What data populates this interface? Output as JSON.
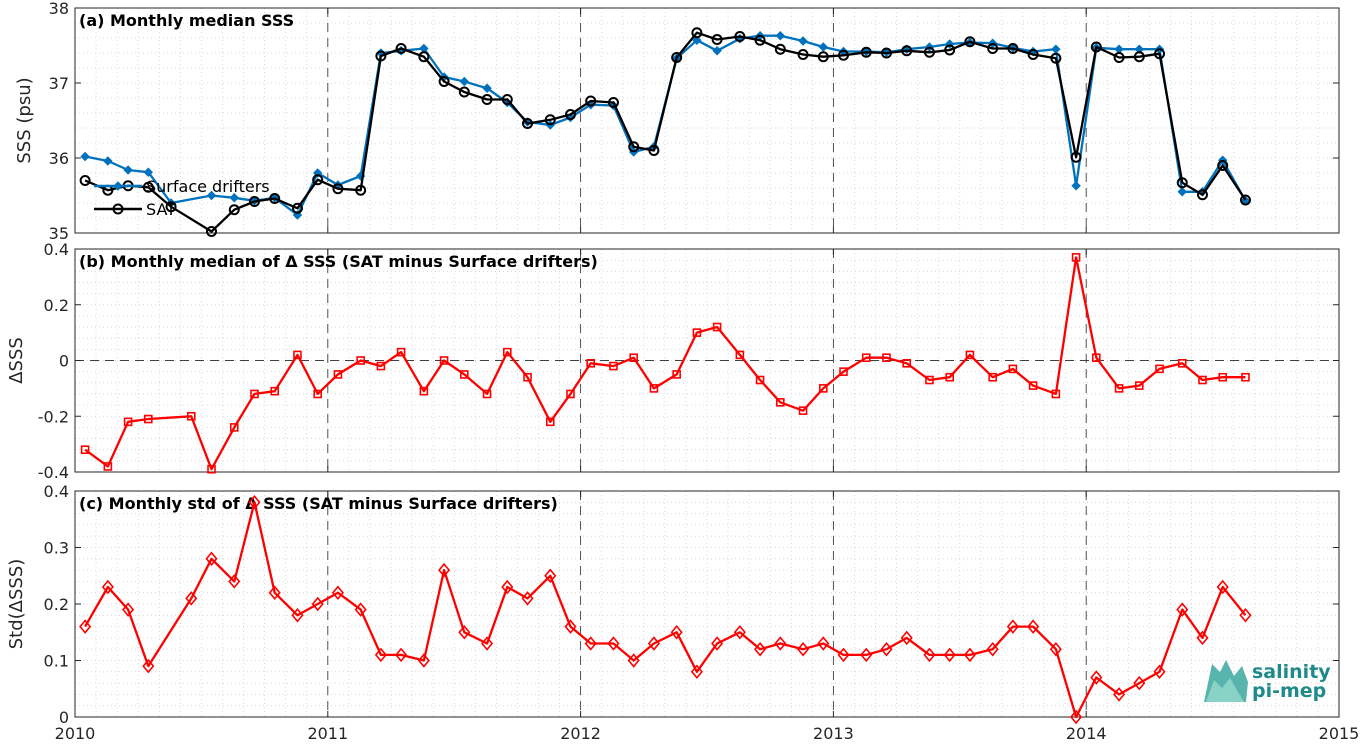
{
  "chart_data": [
    {
      "panel": "a",
      "type": "line",
      "title": "(a) Monthly median SSS",
      "ylabel": "SSS (psu)",
      "xlim": [
        2010,
        2015
      ],
      "ylim": [
        35,
        38
      ],
      "yticks": [
        35,
        36,
        37,
        38
      ],
      "xticks": [
        2010,
        2011,
        2012,
        2013,
        2014,
        2015
      ],
      "grid": true,
      "legend_position": "middle-left",
      "series": [
        {
          "name": "Surface drifters",
          "color": "#0072BD",
          "marker": "diamond",
          "x": [
            2010.04,
            2010.13,
            2010.21,
            2010.29,
            2010.38,
            2010.54,
            2010.63,
            2010.71,
            2010.79,
            2010.88,
            2010.96,
            2011.04,
            2011.13,
            2011.21,
            2011.29,
            2011.38,
            2011.46,
            2011.54,
            2011.63,
            2011.71,
            2011.79,
            2011.88,
            2011.96,
            2012.04,
            2012.13,
            2012.21,
            2012.29,
            2012.38,
            2012.46,
            2012.54,
            2012.63,
            2012.71,
            2012.79,
            2012.88,
            2012.96,
            2013.04,
            2013.13,
            2013.21,
            2013.29,
            2013.38,
            2013.46,
            2013.54,
            2013.63,
            2013.71,
            2013.79,
            2013.88,
            2013.96,
            2014.04,
            2014.13,
            2014.21,
            2014.29,
            2014.38,
            2014.46,
            2014.54,
            2014.63
          ],
          "values": [
            36.02,
            35.96,
            35.84,
            35.81,
            35.4,
            35.5,
            35.47,
            35.43,
            35.47,
            35.24,
            35.8,
            35.64,
            35.76,
            37.4,
            37.43,
            37.46,
            37.08,
            37.02,
            36.93,
            36.74,
            36.48,
            36.44,
            36.54,
            36.71,
            36.7,
            36.08,
            36.15,
            37.33,
            37.57,
            37.43,
            37.59,
            37.63,
            37.63,
            37.56,
            37.48,
            37.42,
            37.42,
            37.41,
            37.45,
            37.48,
            37.52,
            37.54,
            37.53,
            37.47,
            37.42,
            37.45,
            35.63,
            37.47,
            37.45,
            37.45,
            37.45,
            35.55,
            35.55,
            35.97,
            35.43
          ]
        },
        {
          "name": "SAT",
          "color": "#000000",
          "marker": "circle",
          "x": [
            2010.04,
            2010.13,
            2010.21,
            2010.29,
            2010.38,
            2010.54,
            2010.63,
            2010.71,
            2010.79,
            2010.88,
            2010.96,
            2011.04,
            2011.13,
            2011.21,
            2011.29,
            2011.38,
            2011.46,
            2011.54,
            2011.63,
            2011.71,
            2011.79,
            2011.88,
            2011.96,
            2012.04,
            2012.13,
            2012.21,
            2012.29,
            2012.38,
            2012.46,
            2012.54,
            2012.63,
            2012.71,
            2012.79,
            2012.88,
            2012.96,
            2013.04,
            2013.13,
            2013.21,
            2013.29,
            2013.38,
            2013.46,
            2013.54,
            2013.63,
            2013.71,
            2013.79,
            2013.88,
            2013.96,
            2014.04,
            2014.13,
            2014.21,
            2014.29,
            2014.38,
            2014.46,
            2014.54,
            2014.63
          ],
          "values": [
            35.7,
            35.57,
            35.63,
            35.61,
            35.35,
            35.02,
            35.31,
            35.42,
            35.46,
            35.33,
            35.71,
            35.59,
            35.57,
            37.36,
            37.46,
            37.35,
            37.02,
            36.88,
            36.78,
            36.78,
            36.46,
            36.51,
            36.58,
            36.76,
            36.74,
            36.15,
            36.1,
            37.34,
            37.67,
            37.58,
            37.62,
            37.57,
            37.45,
            37.38,
            37.35,
            37.37,
            37.41,
            37.4,
            37.43,
            37.41,
            37.44,
            37.55,
            37.46,
            37.46,
            37.38,
            37.33,
            36.01,
            37.48,
            37.34,
            37.35,
            37.39,
            35.67,
            35.51,
            35.9,
            35.44
          ]
        }
      ]
    },
    {
      "panel": "b",
      "type": "line",
      "title": "(b) Monthly median of Δ SSS (SAT minus Surface drifters)",
      "ylabel": "ΔSSS",
      "xlim": [
        2010,
        2015
      ],
      "ylim": [
        -0.4,
        0.4
      ],
      "yticks": [
        -0.4,
        -0.2,
        0,
        0.2,
        0.4
      ],
      "ytick_labels": [
        "-0.4",
        "-0.2",
        "0",
        "0.2",
        "0.4"
      ],
      "grid": true,
      "series": [
        {
          "color": "#FF0000",
          "marker": "square",
          "x": [
            2010.04,
            2010.13,
            2010.21,
            2010.29,
            2010.46,
            2010.54,
            2010.63,
            2010.71,
            2010.79,
            2010.88,
            2010.96,
            2011.04,
            2011.13,
            2011.21,
            2011.29,
            2011.38,
            2011.46,
            2011.54,
            2011.63,
            2011.71,
            2011.79,
            2011.88,
            2011.96,
            2012.04,
            2012.13,
            2012.21,
            2012.29,
            2012.38,
            2012.46,
            2012.54,
            2012.63,
            2012.71,
            2012.79,
            2012.88,
            2012.96,
            2013.04,
            2013.13,
            2013.21,
            2013.29,
            2013.38,
            2013.46,
            2013.54,
            2013.63,
            2013.71,
            2013.79,
            2013.88,
            2013.96,
            2014.04,
            2014.13,
            2014.21,
            2014.29,
            2014.38,
            2014.46,
            2014.54,
            2014.63
          ],
          "values": [
            -0.32,
            -0.38,
            -0.22,
            -0.21,
            -0.2,
            -0.39,
            -0.24,
            -0.12,
            -0.11,
            0.02,
            -0.12,
            -0.05,
            0.0,
            -0.02,
            0.03,
            -0.11,
            0.0,
            -0.05,
            -0.12,
            0.03,
            -0.06,
            -0.22,
            -0.12,
            -0.01,
            -0.02,
            0.01,
            -0.1,
            -0.05,
            0.1,
            0.12,
            0.02,
            -0.07,
            -0.15,
            -0.18,
            -0.1,
            -0.04,
            0.01,
            0.01,
            -0.01,
            -0.07,
            -0.06,
            0.02,
            -0.06,
            -0.03,
            -0.09,
            -0.12,
            0.37,
            0.01,
            -0.1,
            -0.09,
            -0.03,
            -0.01,
            -0.07,
            -0.06,
            -0.06
          ]
        }
      ]
    },
    {
      "panel": "c",
      "type": "line",
      "title": "(c) Monthly std of Δ SSS (SAT minus Surface drifters)",
      "ylabel": "Std(ΔSSS)",
      "xlim": [
        2010,
        2015
      ],
      "ylim": [
        0,
        0.4
      ],
      "yticks": [
        0,
        0.1,
        0.2,
        0.3,
        0.4
      ],
      "ytick_labels": [
        "0",
        "0.1",
        "0.2",
        "0.3",
        "0.4"
      ],
      "xtick_labels": [
        "2010",
        "2011",
        "2012",
        "2013",
        "2014",
        "2015"
      ],
      "grid": true,
      "series": [
        {
          "color": "#FF0000",
          "marker": "diamond",
          "x": [
            2010.04,
            2010.13,
            2010.21,
            2010.29,
            2010.46,
            2010.54,
            2010.63,
            2010.71,
            2010.79,
            2010.88,
            2010.96,
            2011.04,
            2011.13,
            2011.21,
            2011.29,
            2011.38,
            2011.46,
            2011.54,
            2011.63,
            2011.71,
            2011.79,
            2011.88,
            2011.96,
            2012.04,
            2012.13,
            2012.21,
            2012.29,
            2012.38,
            2012.46,
            2012.54,
            2012.63,
            2012.71,
            2012.79,
            2012.88,
            2012.96,
            2013.04,
            2013.13,
            2013.21,
            2013.29,
            2013.38,
            2013.46,
            2013.54,
            2013.63,
            2013.71,
            2013.79,
            2013.88,
            2013.96,
            2014.04,
            2014.13,
            2014.21,
            2014.29,
            2014.38,
            2014.46,
            2014.54,
            2014.63
          ],
          "values": [
            0.16,
            0.23,
            0.19,
            0.09,
            0.21,
            0.28,
            0.24,
            0.38,
            0.22,
            0.18,
            0.2,
            0.22,
            0.19,
            0.11,
            0.11,
            0.1,
            0.26,
            0.15,
            0.13,
            0.23,
            0.21,
            0.25,
            0.16,
            0.13,
            0.13,
            0.1,
            0.13,
            0.15,
            0.08,
            0.13,
            0.15,
            0.12,
            0.13,
            0.12,
            0.13,
            0.11,
            0.11,
            0.12,
            0.14,
            0.11,
            0.11,
            0.11,
            0.12,
            0.16,
            0.16,
            0.12,
            0.0,
            0.07,
            0.04,
            0.06,
            0.08,
            0.19,
            0.14,
            0.23,
            0.18
          ]
        }
      ]
    }
  ],
  "logo": {
    "line1": "salinity",
    "line2": "pi-mep"
  }
}
